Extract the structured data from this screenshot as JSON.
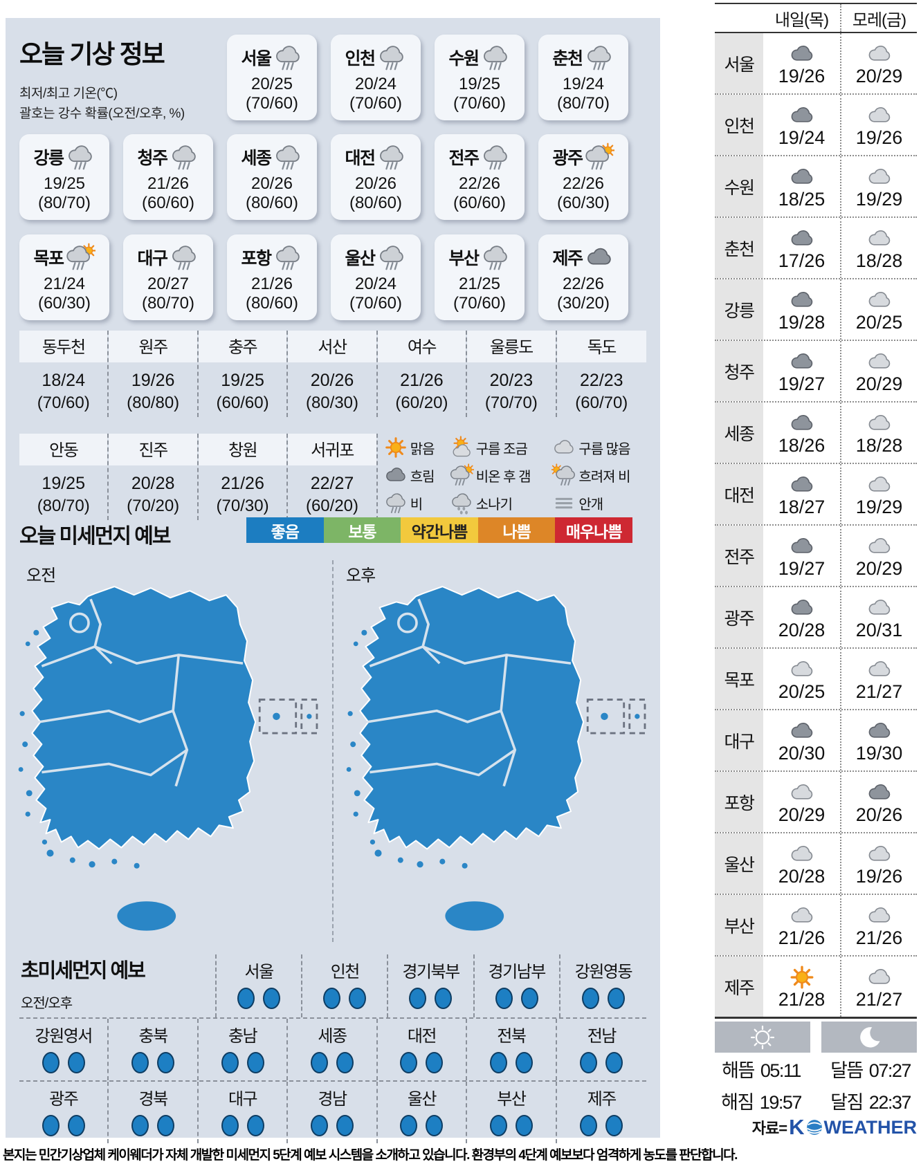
{
  "header": {
    "title": "오늘 기상 정보",
    "subtitle1": "최저/최고 기온(℃)",
    "subtitle2": "괄호는 강수 확률(오전/오후, %)"
  },
  "today_cards": [
    {
      "row": 1,
      "city": "서울",
      "icon": "rain",
      "temp": "20/25",
      "prob": "(70/60)"
    },
    {
      "row": 1,
      "city": "인천",
      "icon": "rain",
      "temp": "20/24",
      "prob": "(70/60)"
    },
    {
      "row": 1,
      "city": "수원",
      "icon": "rain",
      "temp": "19/25",
      "prob": "(70/60)"
    },
    {
      "row": 1,
      "city": "춘천",
      "icon": "rain",
      "temp": "19/24",
      "prob": "(80/70)"
    },
    {
      "row": 2,
      "city": "강릉",
      "icon": "rain",
      "temp": "19/25",
      "prob": "(80/70)"
    },
    {
      "row": 2,
      "city": "청주",
      "icon": "rain",
      "temp": "21/26",
      "prob": "(60/60)"
    },
    {
      "row": 2,
      "city": "세종",
      "icon": "rain",
      "temp": "20/26",
      "prob": "(80/60)"
    },
    {
      "row": 2,
      "city": "대전",
      "icon": "rain",
      "temp": "20/26",
      "prob": "(80/60)"
    },
    {
      "row": 2,
      "city": "전주",
      "icon": "rain",
      "temp": "22/26",
      "prob": "(60/60)"
    },
    {
      "row": 2,
      "city": "광주",
      "icon": "rain-sun",
      "temp": "22/26",
      "prob": "(60/30)"
    },
    {
      "row": 3,
      "city": "목포",
      "icon": "rain-sun",
      "temp": "21/24",
      "prob": "(60/30)"
    },
    {
      "row": 3,
      "city": "대구",
      "icon": "rain",
      "temp": "20/27",
      "prob": "(80/70)"
    },
    {
      "row": 3,
      "city": "포항",
      "icon": "rain",
      "temp": "21/26",
      "prob": "(80/60)"
    },
    {
      "row": 3,
      "city": "울산",
      "icon": "rain",
      "temp": "20/24",
      "prob": "(70/60)"
    },
    {
      "row": 3,
      "city": "부산",
      "icon": "rain",
      "temp": "21/25",
      "prob": "(70/60)"
    },
    {
      "row": 3,
      "city": "제주",
      "icon": "cloud-dark",
      "temp": "22/26",
      "prob": "(30/20)"
    }
  ],
  "region_table": {
    "row1": [
      {
        "name": "동두천",
        "temp": "18/24",
        "prob": "(70/60)"
      },
      {
        "name": "원주",
        "temp": "19/26",
        "prob": "(80/80)"
      },
      {
        "name": "충주",
        "temp": "19/25",
        "prob": "(60/60)"
      },
      {
        "name": "서산",
        "temp": "20/26",
        "prob": "(80/30)"
      },
      {
        "name": "여수",
        "temp": "21/26",
        "prob": "(60/20)"
      },
      {
        "name": "울릉도",
        "temp": "20/23",
        "prob": "(70/70)"
      },
      {
        "name": "독도",
        "temp": "22/23",
        "prob": "(60/70)"
      }
    ],
    "row2": [
      {
        "name": "안동",
        "temp": "19/25",
        "prob": "(80/70)"
      },
      {
        "name": "진주",
        "temp": "20/28",
        "prob": "(70/20)"
      },
      {
        "name": "창원",
        "temp": "21/26",
        "prob": "(70/30)"
      },
      {
        "name": "서귀포",
        "temp": "22/27",
        "prob": "(60/20)"
      }
    ]
  },
  "legend": [
    {
      "icon": "sun",
      "label": "맑음"
    },
    {
      "icon": "sun-cloud",
      "label": "구름 조금"
    },
    {
      "icon": "cloud-light",
      "label": "구름 많음"
    },
    {
      "icon": "cloud-dark",
      "label": "흐림"
    },
    {
      "icon": "rain-sun",
      "label": "비온 후 갬"
    },
    {
      "icon": "sun-rain",
      "label": "흐려져 비"
    },
    {
      "icon": "rain",
      "label": "비"
    },
    {
      "icon": "shower",
      "label": "소나기"
    },
    {
      "icon": "fog",
      "label": "안개"
    }
  ],
  "dust": {
    "title": "오늘 미세먼지 예보",
    "am_label": "오전",
    "pm_label": "오후",
    "scale": [
      {
        "label": "좋음",
        "bg": "#1c7dc1",
        "fg": "#ffffff"
      },
      {
        "label": "보통",
        "bg": "#7db566",
        "fg": "#ffffff"
      },
      {
        "label": "약간나쁨",
        "bg": "#f2c93d",
        "fg": "#222222"
      },
      {
        "label": "나쁨",
        "bg": "#dd8627",
        "fg": "#ffffff"
      },
      {
        "label": "매우나쁨",
        "bg": "#ce2832",
        "fg": "#ffffff"
      }
    ]
  },
  "ultrafine": {
    "title": "초미세먼지 예보",
    "subtitle": "오전/오후",
    "levels": {
      "good": "#1d7fc3"
    },
    "row1": [
      {
        "name": "서울",
        "am": "good",
        "pm": "good"
      },
      {
        "name": "인천",
        "am": "good",
        "pm": "good"
      },
      {
        "name": "경기북부",
        "am": "good",
        "pm": "good"
      },
      {
        "name": "경기남부",
        "am": "good",
        "pm": "good"
      },
      {
        "name": "강원영동",
        "am": "good",
        "pm": "good"
      }
    ],
    "row2": [
      {
        "name": "강원영서",
        "am": "good",
        "pm": "good"
      },
      {
        "name": "충북",
        "am": "good",
        "pm": "good"
      },
      {
        "name": "충남",
        "am": "good",
        "pm": "good"
      },
      {
        "name": "세종",
        "am": "good",
        "pm": "good"
      },
      {
        "name": "대전",
        "am": "good",
        "pm": "good"
      },
      {
        "name": "전북",
        "am": "good",
        "pm": "good"
      },
      {
        "name": "전남",
        "am": "good",
        "pm": "good"
      }
    ],
    "row3": [
      {
        "name": "광주",
        "am": "good",
        "pm": "good"
      },
      {
        "name": "경북",
        "am": "good",
        "pm": "good"
      },
      {
        "name": "대구",
        "am": "good",
        "pm": "good"
      },
      {
        "name": "경남",
        "am": "good",
        "pm": "good"
      },
      {
        "name": "울산",
        "am": "good",
        "pm": "good"
      },
      {
        "name": "부산",
        "am": "good",
        "pm": "good"
      },
      {
        "name": "제주",
        "am": "good",
        "pm": "good"
      }
    ]
  },
  "forecast": {
    "col1": "내일(목)",
    "col2": "모레(금)",
    "rows": [
      {
        "city": "서울",
        "d1_icon": "cloud-dark",
        "d1": "19/26",
        "d2_icon": "cloud-light",
        "d2": "20/29"
      },
      {
        "city": "인천",
        "d1_icon": "cloud-dark",
        "d1": "19/24",
        "d2_icon": "cloud-light",
        "d2": "19/26"
      },
      {
        "city": "수원",
        "d1_icon": "cloud-dark",
        "d1": "18/25",
        "d2_icon": "cloud-light",
        "d2": "19/29"
      },
      {
        "city": "춘천",
        "d1_icon": "cloud-dark",
        "d1": "17/26",
        "d2_icon": "cloud-light",
        "d2": "18/28"
      },
      {
        "city": "강릉",
        "d1_icon": "cloud-dark",
        "d1": "19/28",
        "d2_icon": "cloud-light",
        "d2": "20/25"
      },
      {
        "city": "청주",
        "d1_icon": "cloud-dark",
        "d1": "19/27",
        "d2_icon": "cloud-light",
        "d2": "20/29"
      },
      {
        "city": "세종",
        "d1_icon": "cloud-dark",
        "d1": "18/26",
        "d2_icon": "cloud-light",
        "d2": "18/28"
      },
      {
        "city": "대전",
        "d1_icon": "cloud-dark",
        "d1": "18/27",
        "d2_icon": "cloud-light",
        "d2": "19/29"
      },
      {
        "city": "전주",
        "d1_icon": "cloud-dark",
        "d1": "19/27",
        "d2_icon": "cloud-light",
        "d2": "20/29"
      },
      {
        "city": "광주",
        "d1_icon": "cloud-dark",
        "d1": "20/28",
        "d2_icon": "cloud-light",
        "d2": "20/31"
      },
      {
        "city": "목포",
        "d1_icon": "cloud-light",
        "d1": "20/25",
        "d2_icon": "cloud-light",
        "d2": "21/27"
      },
      {
        "city": "대구",
        "d1_icon": "cloud-dark",
        "d1": "20/30",
        "d2_icon": "cloud-dark",
        "d2": "19/30"
      },
      {
        "city": "포항",
        "d1_icon": "cloud-light",
        "d1": "20/29",
        "d2_icon": "cloud-dark",
        "d2": "20/26"
      },
      {
        "city": "울산",
        "d1_icon": "cloud-light",
        "d1": "20/28",
        "d2_icon": "cloud-light",
        "d2": "19/26"
      },
      {
        "city": "부산",
        "d1_icon": "cloud-light",
        "d1": "21/26",
        "d2_icon": "cloud-light",
        "d2": "21/26"
      },
      {
        "city": "제주",
        "d1_icon": "sun",
        "d1": "21/28",
        "d2_icon": "cloud-light",
        "d2": "21/27"
      }
    ]
  },
  "sunmoon": {
    "sunrise_label": "해뜸",
    "sunrise": "05:11",
    "sunset_label": "해짐",
    "sunset": "19:57",
    "moonrise_label": "달뜸",
    "moonrise": "07:27",
    "moonset_label": "달짐",
    "moonset": "22:37"
  },
  "source": {
    "prefix": "자료=",
    "logo_k": "K",
    "logo_rest": "WEATHER"
  },
  "footer": "본지는 민간기상업체 케이웨더가 자체 개발한 미세먼지 5단계 예보 시스템을 소개하고 있습니다. 환경부의 4단계 예보보다 엄격하게 농도를 판단합니다.",
  "colors": {
    "map_fill": "#2a86c6",
    "panel_bg": "#d8dfe9",
    "good_dot": "#1d7fc3"
  }
}
